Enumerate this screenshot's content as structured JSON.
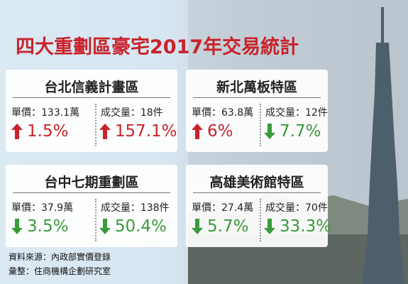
{
  "header": {
    "title": "四大重劃區豪宅2017年交易統計"
  },
  "cards": [
    {
      "name": "台北信義計畫區",
      "price": "單價：133.1萬",
      "volume": "成交量：18件",
      "price_change": {
        "text": "1.5%",
        "direction": "up"
      },
      "volume_change": {
        "text": "157.1%",
        "direction": "up"
      }
    },
    {
      "name": "新北萬板特區",
      "price": "單價：63.8萬",
      "volume": "成交量：12件",
      "price_change": {
        "text": "6%",
        "direction": "up"
      },
      "volume_change": {
        "text": "7.7%",
        "direction": "down"
      }
    },
    {
      "name": "台中七期重劃區",
      "price": "單價：37.9萬",
      "volume": "成交量：138件",
      "price_change": {
        "text": "3.5%",
        "direction": "down"
      },
      "volume_change": {
        "text": "50.4%",
        "direction": "down"
      }
    },
    {
      "name": "高雄美術館特區",
      "price": "單價：27.4萬",
      "volume": "成交量：70件",
      "price_change": {
        "text": "5.7%",
        "direction": "down"
      },
      "volume_change": {
        "text": "33.3%",
        "direction": "down"
      }
    }
  ],
  "footer": {
    "source": "資料來源：內政部實價登錄",
    "compiler": "彙整：住商機構企劃研究室"
  }
}
